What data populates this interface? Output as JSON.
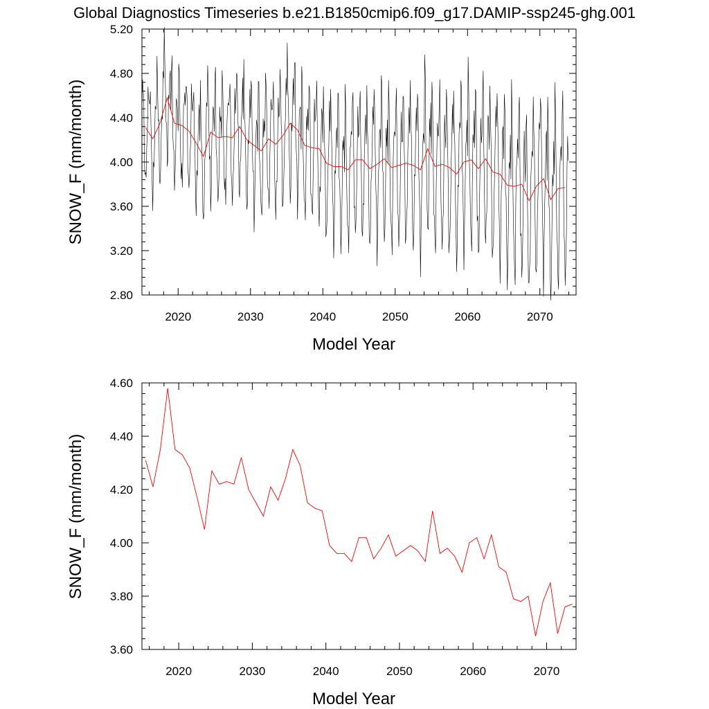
{
  "title": "Global Diagnostics Timeseries b.e21.B1850cmip6.f09_g17.DAMIP-ssp245-ghg.001",
  "chart_data": [
    {
      "type": "line",
      "xlabel": "Model Year",
      "ylabel": "SNOW_F (mm/month)",
      "xlim": [
        2015,
        2075
      ],
      "ylim": [
        2.8,
        5.2
      ],
      "xticks": [
        "2020",
        "2030",
        "2040",
        "2050",
        "2060",
        "2070"
      ],
      "yticks": [
        "2.80",
        "3.20",
        "3.60",
        "4.00",
        "4.40",
        "4.80",
        "5.20"
      ],
      "grid": false,
      "legend": "none",
      "series": [
        {
          "role": "monthly",
          "color": "#000000",
          "x_start": 2015.0,
          "x_step": 0.0833333,
          "monthly_cycle": [
            4.36,
            4.7,
            4.62,
            4.3,
            4.05,
            3.85,
            3.7,
            3.8,
            4.05,
            4.28,
            4.42,
            4.48
          ],
          "cycle_scale_start": 1.0,
          "cycle_scale_end": 1.7,
          "note_values_follow": "annual_mean_plus_cycle"
        },
        {
          "role": "annual",
          "color": "#ff0000",
          "x_start": 2015.5,
          "x_step": 1.0,
          "values": [
            4.31,
            4.21,
            4.35,
            4.58,
            4.35,
            4.33,
            4.28,
            4.17,
            4.05,
            4.27,
            4.22,
            4.23,
            4.22,
            4.32,
            4.2,
            4.15,
            4.1,
            4.21,
            4.16,
            4.24,
            4.35,
            4.29,
            4.15,
            4.13,
            4.12,
            3.99,
            3.96,
            3.96,
            3.93,
            4.02,
            4.02,
            3.94,
            3.98,
            4.03,
            3.95,
            3.97,
            3.99,
            3.97,
            3.93,
            4.12,
            3.96,
            3.98,
            3.95,
            3.89,
            4.0,
            4.02,
            3.94,
            4.03,
            3.91,
            3.89,
            3.79,
            3.78,
            3.8,
            3.65,
            3.78,
            3.85,
            3.66,
            3.76,
            3.77
          ]
        }
      ]
    },
    {
      "type": "line",
      "xlabel": "Model Year",
      "ylabel": "SNOW_F (mm/month)",
      "xlim": [
        2015,
        2074
      ],
      "ylim": [
        3.6,
        4.6
      ],
      "xticks": [
        "2020",
        "2030",
        "2040",
        "2050",
        "2060",
        "2070"
      ],
      "yticks": [
        "3.60",
        "3.80",
        "4.00",
        "4.20",
        "4.40",
        "4.60"
      ],
      "grid": false,
      "legend": "none",
      "series": [
        {
          "role": "annual",
          "color": "#ff0000",
          "x_start": 2015.5,
          "x_step": 1.0,
          "values": [
            4.31,
            4.21,
            4.35,
            4.58,
            4.35,
            4.33,
            4.28,
            4.17,
            4.05,
            4.27,
            4.22,
            4.23,
            4.22,
            4.32,
            4.2,
            4.15,
            4.1,
            4.21,
            4.16,
            4.24,
            4.35,
            4.29,
            4.15,
            4.13,
            4.12,
            3.99,
            3.96,
            3.96,
            3.93,
            4.02,
            4.02,
            3.94,
            3.98,
            4.03,
            3.95,
            3.97,
            3.99,
            3.97,
            3.93,
            4.12,
            3.96,
            3.98,
            3.95,
            3.89,
            4.0,
            4.02,
            3.94,
            4.03,
            3.91,
            3.89,
            3.79,
            3.78,
            3.8,
            3.65,
            3.78,
            3.85,
            3.66,
            3.76,
            3.77
          ]
        }
      ]
    }
  ]
}
